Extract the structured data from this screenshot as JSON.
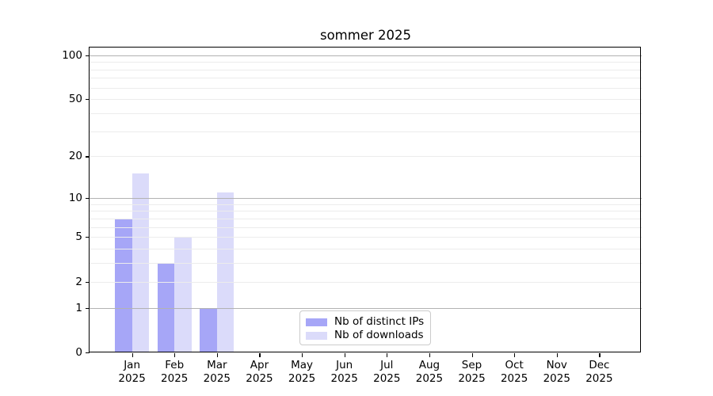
{
  "title": "sommer 2025",
  "chart_data": {
    "type": "bar",
    "title": "sommer 2025",
    "xlabel": "",
    "ylabel": "",
    "categories": [
      "Jan 2025",
      "Feb 2025",
      "Mar 2025",
      "Apr 2025",
      "May 2025",
      "Jun 2025",
      "Jul 2025",
      "Aug 2025",
      "Sep 2025",
      "Oct 2025",
      "Nov 2025",
      "Dec 2025"
    ],
    "series": [
      {
        "name": "Nb of distinct IPs",
        "color": "#a6a6f7",
        "values": [
          7,
          3,
          1,
          0,
          0,
          0,
          0,
          0,
          0,
          0,
          0,
          0
        ]
      },
      {
        "name": "Nb of downloads",
        "color": "#dbdbfa",
        "values": [
          15,
          5,
          11,
          0,
          0,
          0,
          0,
          0,
          0,
          0,
          0,
          0
        ]
      }
    ],
    "y_axis": {
      "scale": "log1p",
      "tick_values": [
        0,
        1,
        2,
        5,
        10,
        20,
        50,
        100
      ],
      "major_gridlines": [
        1,
        10,
        100
      ],
      "minor_gridlines": [
        2,
        3,
        4,
        5,
        6,
        7,
        8,
        9,
        20,
        30,
        40,
        50,
        60,
        70,
        80,
        90
      ],
      "ymax": 113
    },
    "grid": true,
    "legend_position": "lower center inside",
    "colors": {
      "major_grid": "#b2b2b2",
      "minor_grid": "#ececec",
      "spine": "#000000",
      "background": "#ffffff",
      "legend_border": "#cbcbcb"
    }
  }
}
